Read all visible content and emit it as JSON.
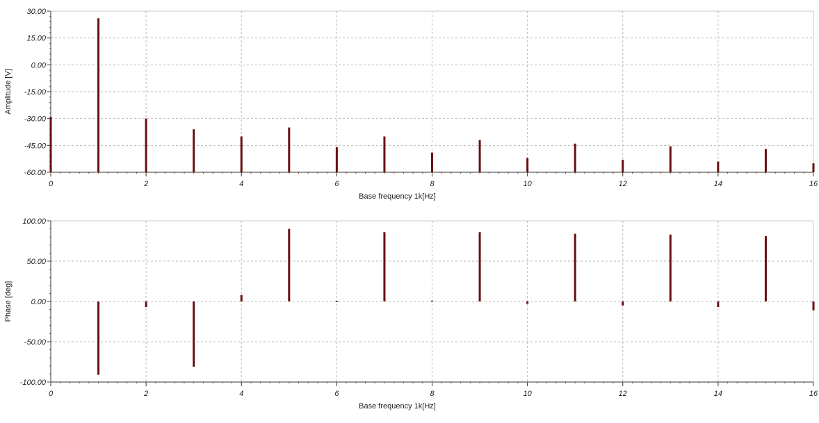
{
  "chart_data": [
    {
      "type": "bar",
      "title": "",
      "xlabel": "Base frequency 1k[Hz]",
      "ylabel": "Amplitude [V]",
      "xlim": [
        0,
        16
      ],
      "ylim": [
        -60,
        30
      ],
      "x_ticks": [
        "0",
        "2",
        "4",
        "6",
        "8",
        "10",
        "12",
        "14",
        "16"
      ],
      "y_ticks": [
        "30.00",
        "15.00",
        "0.00",
        "-15.00",
        "-30.00",
        "-45.00",
        "-60.00"
      ],
      "grid": true,
      "baseline": -60,
      "x": [
        0,
        1,
        2,
        3,
        4,
        5,
        6,
        7,
        8,
        9,
        10,
        11,
        12,
        13,
        14,
        15,
        16
      ],
      "values": [
        -29,
        26,
        -30,
        -36,
        -40,
        -35,
        -46,
        -40,
        -49,
        -42,
        -52,
        -44,
        -53,
        -45.5,
        -54,
        -47,
        -55
      ],
      "color": "#6b0f0f"
    },
    {
      "type": "bar",
      "title": "",
      "xlabel": "Base frequency 1k[Hz]",
      "ylabel": "Phase [deg]",
      "xlim": [
        0,
        16
      ],
      "ylim": [
        -100,
        100
      ],
      "x_ticks": [
        "0",
        "2",
        "4",
        "6",
        "8",
        "10",
        "12",
        "14",
        "16"
      ],
      "y_ticks": [
        "100.00",
        "50.00",
        "0.00",
        "-50.00",
        "-100.00"
      ],
      "grid": true,
      "baseline": 0,
      "x": [
        1,
        2,
        3,
        4,
        5,
        6,
        7,
        8,
        9,
        10,
        11,
        12,
        13,
        14,
        15,
        16
      ],
      "values": [
        -91,
        -7,
        -81,
        8,
        90,
        0.5,
        86,
        1,
        86,
        -3,
        84,
        -5,
        83,
        -7,
        81,
        -11
      ],
      "color": "#6b0f0f"
    }
  ]
}
